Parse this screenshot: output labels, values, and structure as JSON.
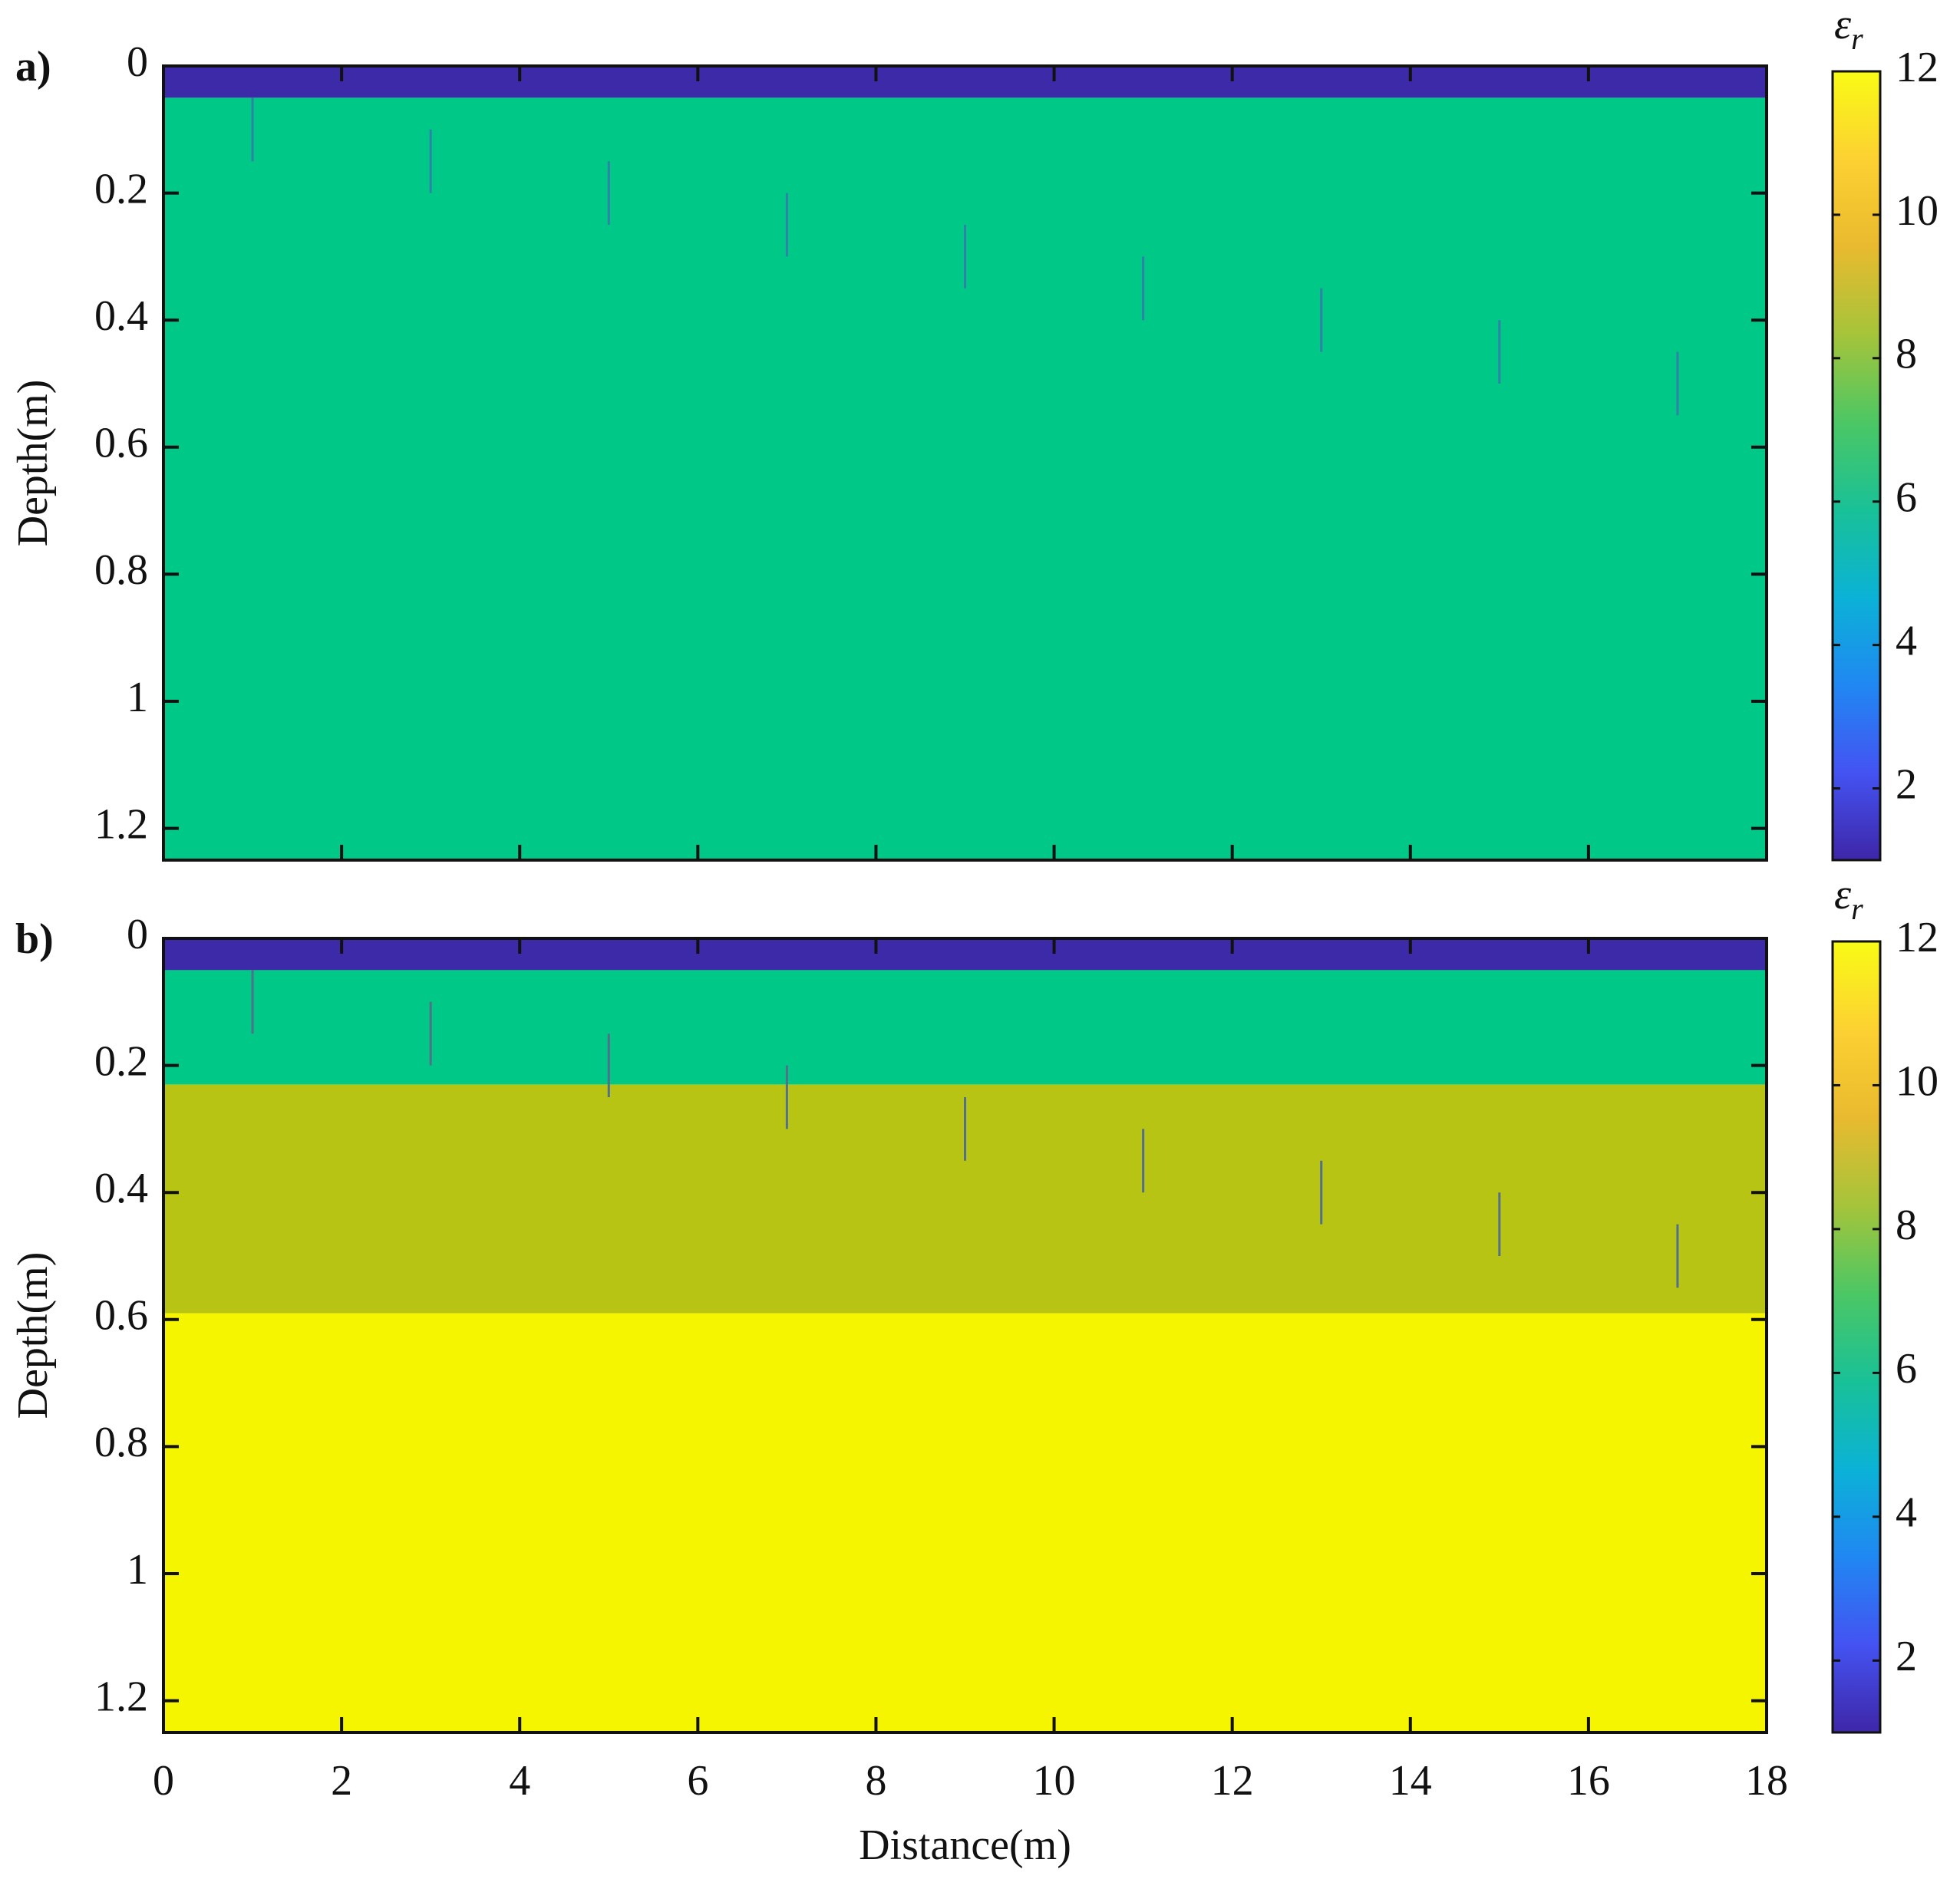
{
  "chart_data": [
    {
      "type": "layers",
      "panel_label": "a)",
      "ylabel": "Depth(m)",
      "xlim": [
        0,
        18
      ],
      "ylim": [
        0,
        1.25
      ],
      "xticks": [
        0,
        2,
        4,
        6,
        8,
        10,
        12,
        14,
        16,
        18
      ],
      "show_xtick_labels": false,
      "yticks": [
        0,
        0.2,
        0.4,
        0.6,
        0.8,
        1,
        1.2
      ],
      "layers": [
        {
          "top": 0,
          "bottom": 0.05,
          "value": 1,
          "color": "#3d2aa8"
        },
        {
          "top": 0.05,
          "bottom": 1.25,
          "value": 7,
          "color": "#00c887"
        }
      ],
      "rods": {
        "color": "#2f82a8",
        "x": [
          1,
          3,
          5,
          7,
          9,
          11,
          13,
          15,
          17
        ],
        "top": [
          0.05,
          0.1,
          0.15,
          0.2,
          0.25,
          0.3,
          0.35,
          0.4,
          0.45
        ],
        "bottom": [
          0.15,
          0.2,
          0.25,
          0.3,
          0.35,
          0.4,
          0.45,
          0.5,
          0.55
        ]
      },
      "colorbar": {
        "symbol": "ε",
        "subscript": "r",
        "lim": [
          1,
          12
        ],
        "ticks": [
          2,
          4,
          6,
          8,
          10,
          12
        ],
        "colors": [
          "#3e26a8",
          "#4453f2",
          "#2088f2",
          "#0bb2d6",
          "#19c197",
          "#4cc764",
          "#a6c43a",
          "#e9ba2f",
          "#fcd132",
          "#f9fb15"
        ]
      }
    },
    {
      "type": "layers",
      "panel_label": "b)",
      "ylabel": "Depth(m)",
      "xlabel": "Distance(m)",
      "xlim": [
        0,
        18
      ],
      "ylim": [
        0,
        1.25
      ],
      "xticks": [
        0,
        2,
        4,
        6,
        8,
        10,
        12,
        14,
        16,
        18
      ],
      "show_xtick_labels": true,
      "yticks": [
        0,
        0.2,
        0.4,
        0.6,
        0.8,
        1,
        1.2
      ],
      "layers": [
        {
          "top": 0,
          "bottom": 0.05,
          "value": 1,
          "color": "#3d2aa8"
        },
        {
          "top": 0.05,
          "bottom": 0.23,
          "value": 7,
          "color": "#00c887"
        },
        {
          "top": 0.23,
          "bottom": 0.59,
          "value": 9.5,
          "color": "#b8c414"
        },
        {
          "top": 0.59,
          "bottom": 1.25,
          "value": 12,
          "color": "#f5f500"
        }
      ],
      "rods": {
        "color": "#52708a",
        "x": [
          1,
          3,
          5,
          7,
          9,
          11,
          13,
          15,
          17
        ],
        "top": [
          0.05,
          0.1,
          0.15,
          0.2,
          0.25,
          0.3,
          0.35,
          0.4,
          0.45
        ],
        "bottom": [
          0.15,
          0.2,
          0.25,
          0.3,
          0.35,
          0.4,
          0.45,
          0.5,
          0.55
        ]
      },
      "colorbar": {
        "symbol": "ε",
        "subscript": "r",
        "lim": [
          1,
          12
        ],
        "ticks": [
          2,
          4,
          6,
          8,
          10,
          12
        ],
        "colors": [
          "#3e26a8",
          "#4453f2",
          "#2088f2",
          "#0bb2d6",
          "#19c197",
          "#4cc764",
          "#a6c43a",
          "#e9ba2f",
          "#fcd132",
          "#f9fb15"
        ]
      }
    }
  ]
}
